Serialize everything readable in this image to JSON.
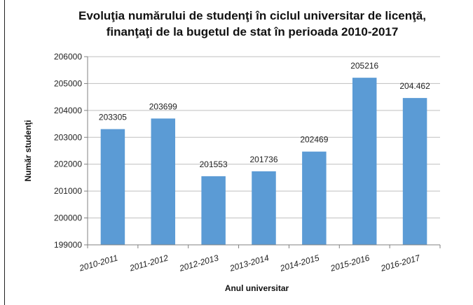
{
  "chart_data": {
    "type": "bar",
    "title_line1": "Evoluţia numărului de studenţi în ciclul universitar de licenţă,",
    "title_line2": "finanţaţi de la bugetul de stat în perioada 2010-2017",
    "xlabel": "Anul universitar",
    "ylabel": "Număr studenţi",
    "categories": [
      "2010-2011",
      "2011-2012",
      "2012-2013",
      "2013-2014",
      "2014-2015",
      "2015-2016",
      "2016-2017"
    ],
    "values": [
      203305,
      203699,
      201553,
      201736,
      202469,
      205216,
      204462
    ],
    "data_labels": [
      "203305",
      "203699",
      "201553",
      "201736",
      "202469",
      "205216",
      "204.462"
    ],
    "ylim": [
      199000,
      206000
    ],
    "yticks": [
      199000,
      200000,
      201000,
      202000,
      203000,
      204000,
      205000,
      206000
    ],
    "grid": true,
    "bar_color": "#5b9bd5"
  }
}
